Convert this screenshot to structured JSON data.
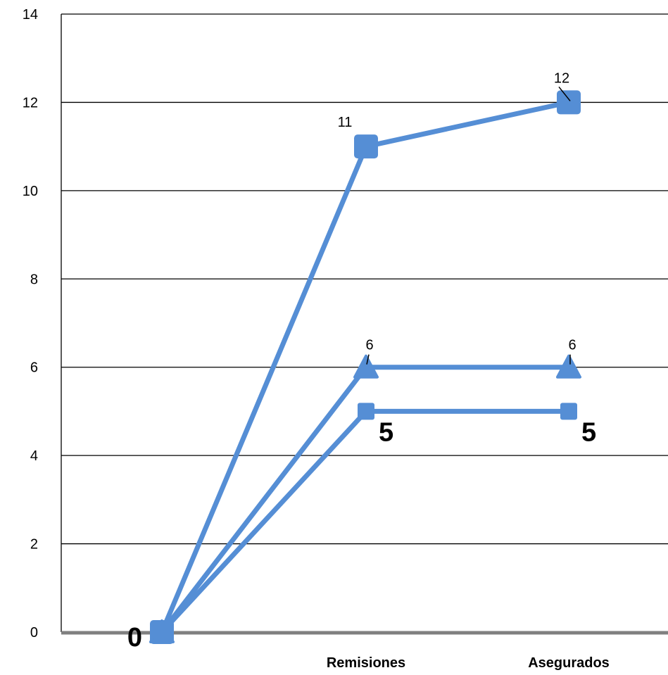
{
  "chart_data": {
    "type": "line",
    "categories": [
      "",
      "Remisiones",
      "Asegurados"
    ],
    "ylim": [
      0,
      14
    ],
    "yticks": [
      0,
      2,
      4,
      6,
      8,
      10,
      12,
      14
    ],
    "grid": true,
    "legend": "none",
    "series": [
      {
        "values": [
          0,
          11,
          12
        ],
        "marker": "square",
        "color": "#558ed5",
        "labels": [
          "",
          "11",
          "12"
        ]
      },
      {
        "values": [
          0,
          6,
          6
        ],
        "marker": "triangle",
        "color": "#558ed5",
        "labels": [
          "",
          "6",
          "6"
        ]
      },
      {
        "values": [
          0,
          5,
          5
        ],
        "marker": "square-small",
        "color": "#558ed5",
        "labels": [
          "0",
          "5",
          "5"
        ]
      }
    ]
  },
  "colors": {
    "series": "#558ed5",
    "axis": "#808080",
    "grid": "#000000",
    "origin_marker_outline": "#e0201b"
  }
}
